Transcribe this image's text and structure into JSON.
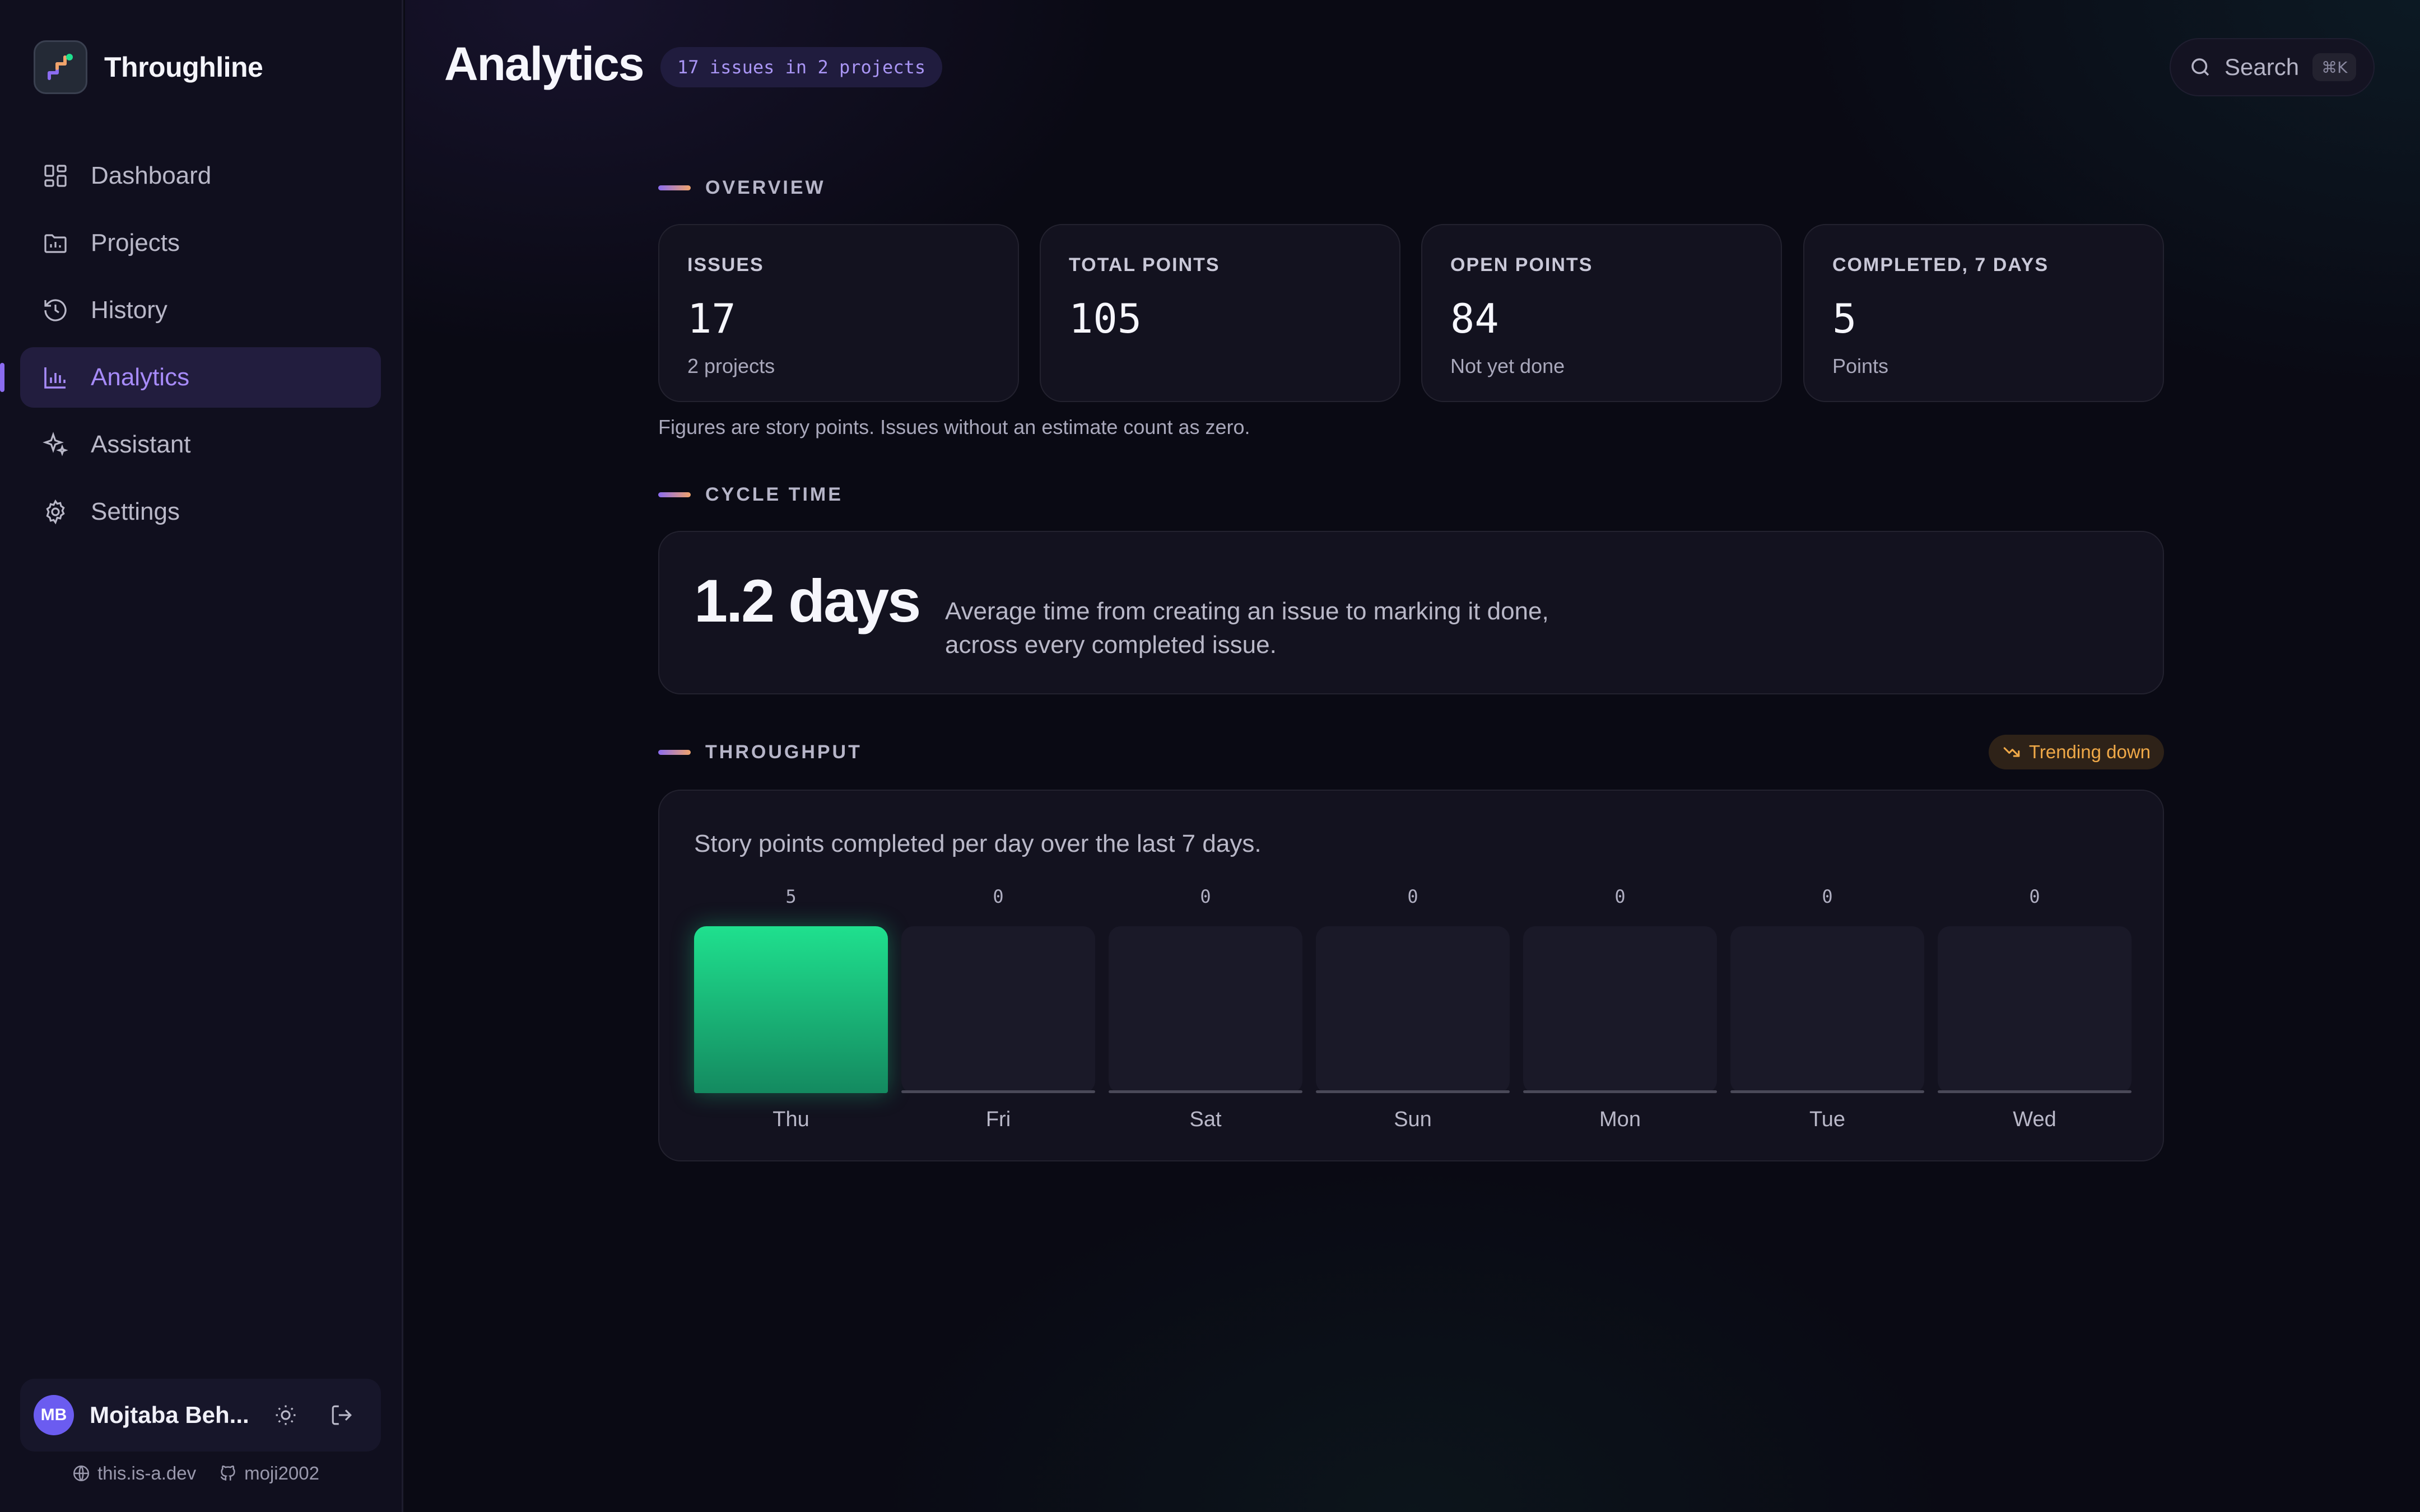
{
  "app": {
    "name": "Throughline"
  },
  "sidebar": {
    "items": [
      {
        "label": "Dashboard",
        "icon": "dashboard-icon",
        "active": false
      },
      {
        "label": "Projects",
        "icon": "folder-icon",
        "active": false
      },
      {
        "label": "History",
        "icon": "history-icon",
        "active": false
      },
      {
        "label": "Analytics",
        "icon": "bar-chart-icon",
        "active": true
      },
      {
        "label": "Assistant",
        "icon": "sparkle-icon",
        "active": false
      },
      {
        "label": "Settings",
        "icon": "gear-icon",
        "active": false
      }
    ],
    "user": {
      "initials": "MB",
      "name": "Mojtaba Beh..."
    },
    "footer": {
      "website": "this.is-a.dev",
      "github": "moji2002"
    }
  },
  "header": {
    "title": "Analytics",
    "issues_pill": "17 issues in 2 projects",
    "search_label": "Search",
    "search_shortcut": "⌘K"
  },
  "overview": {
    "heading": "OVERVIEW",
    "stats": [
      {
        "label": "ISSUES",
        "value": "17",
        "sub": "2 projects"
      },
      {
        "label": "TOTAL POINTS",
        "value": "105",
        "sub": ""
      },
      {
        "label": "OPEN POINTS",
        "value": "84",
        "sub": "Not yet done"
      },
      {
        "label": "COMPLETED, 7 DAYS",
        "value": "5",
        "sub": "Points"
      }
    ],
    "note": "Figures are story points. Issues without an estimate count as zero."
  },
  "cycle_time": {
    "heading": "CYCLE TIME",
    "value": "1.2 days",
    "description": "Average time from creating an issue to marking it done, across every completed issue."
  },
  "throughput": {
    "heading": "THROUGHPUT",
    "trend": "Trending down",
    "description": "Story points completed per day over the last 7 days."
  },
  "colors": {
    "accent": "#a78bfa",
    "bar": "#1fe08e",
    "trend": "#f0a948"
  },
  "chart_data": {
    "type": "bar",
    "categories": [
      "Thu",
      "Fri",
      "Sat",
      "Sun",
      "Mon",
      "Tue",
      "Wed"
    ],
    "values": [
      5,
      0,
      0,
      0,
      0,
      0,
      0
    ],
    "ylim": [
      0,
      5
    ],
    "grid": false
  }
}
